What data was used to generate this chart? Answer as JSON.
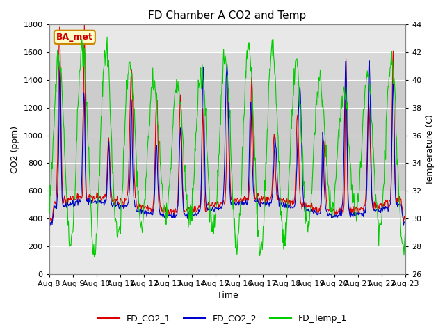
{
  "title": "FD Chamber A CO2 and Temp",
  "xlabel": "Time",
  "ylabel_left": "CO2 (ppm)",
  "ylabel_right": "Temperature (C)",
  "ylim_left": [
    0,
    1800
  ],
  "ylim_right": [
    26,
    44
  ],
  "yticks_left": [
    0,
    200,
    400,
    600,
    800,
    1000,
    1200,
    1400,
    1600,
    1800
  ],
  "yticks_right": [
    26,
    28,
    30,
    32,
    34,
    36,
    38,
    40,
    42,
    44
  ],
  "xtick_labels": [
    "Aug 8",
    "Aug 9",
    "Aug 10",
    "Aug 11",
    "Aug 12",
    "Aug 13",
    "Aug 14",
    "Aug 15",
    "Aug 16",
    "Aug 17",
    "Aug 18",
    "Aug 19",
    "Aug 20",
    "Aug 21",
    "Aug 22",
    "Aug 23"
  ],
  "legend_labels": [
    "FD_CO2_1",
    "FD_CO2_2",
    "FD_Temp_1"
  ],
  "line_colors": [
    "#dd0000",
    "#0000cc",
    "#00cc00"
  ],
  "bg_color": "#ffffff",
  "plot_bg_color": "#e8e8e8",
  "band_mid_color": "#d0d0d0",
  "annotation_text": "BA_met",
  "annotation_color": "#cc0000",
  "annotation_bg": "#ffffcc",
  "annotation_border": "#cc8800",
  "title_fontsize": 11,
  "axis_fontsize": 9,
  "tick_fontsize": 8,
  "legend_fontsize": 9,
  "n_days": 15,
  "n_pts": 720
}
